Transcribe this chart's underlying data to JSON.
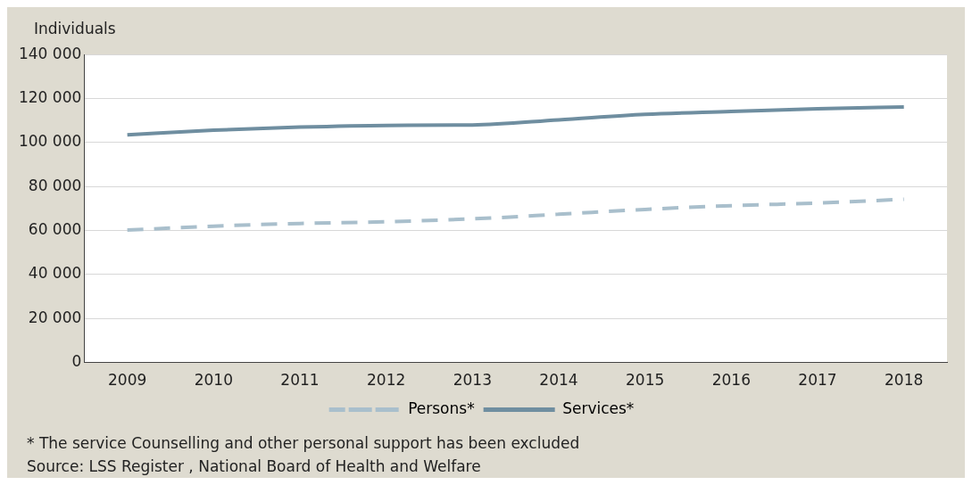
{
  "chart_data": {
    "type": "line",
    "ylabel": "Individuals",
    "categories": [
      "2009",
      "2010",
      "2011",
      "2012",
      "2013",
      "2014",
      "2015",
      "2016",
      "2017",
      "2018"
    ],
    "series": [
      {
        "name": "Persons*",
        "color": "#a9bfcc",
        "line_style": "dashed",
        "values": [
          60200,
          62000,
          63200,
          64000,
          65300,
          67400,
          69600,
          71300,
          72500,
          74200
        ]
      },
      {
        "name": "Services*",
        "color": "#6f8ea0",
        "line_style": "solid",
        "values": [
          103500,
          105600,
          107000,
          107800,
          108000,
          110300,
          112800,
          114100,
          115400,
          116200
        ]
      }
    ],
    "ylim": [
      0,
      140000
    ],
    "yticks": [
      {
        "value": 0,
        "label": "0"
      },
      {
        "value": 20000,
        "label": "20 000"
      },
      {
        "value": 40000,
        "label": "40 000"
      },
      {
        "value": 60000,
        "label": "60 000"
      },
      {
        "value": 80000,
        "label": "80 000"
      },
      {
        "value": 100000,
        "label": "100 000"
      },
      {
        "value": 120000,
        "label": "120 000"
      },
      {
        "value": 140000,
        "label": "140 000"
      }
    ],
    "grid": "y",
    "legend": "bottom",
    "marker": "none",
    "annotations": [
      "* The service Counselling and other personal support has been excluded",
      "Source: LSS Register , National Board of Health and Welfare"
    ]
  }
}
